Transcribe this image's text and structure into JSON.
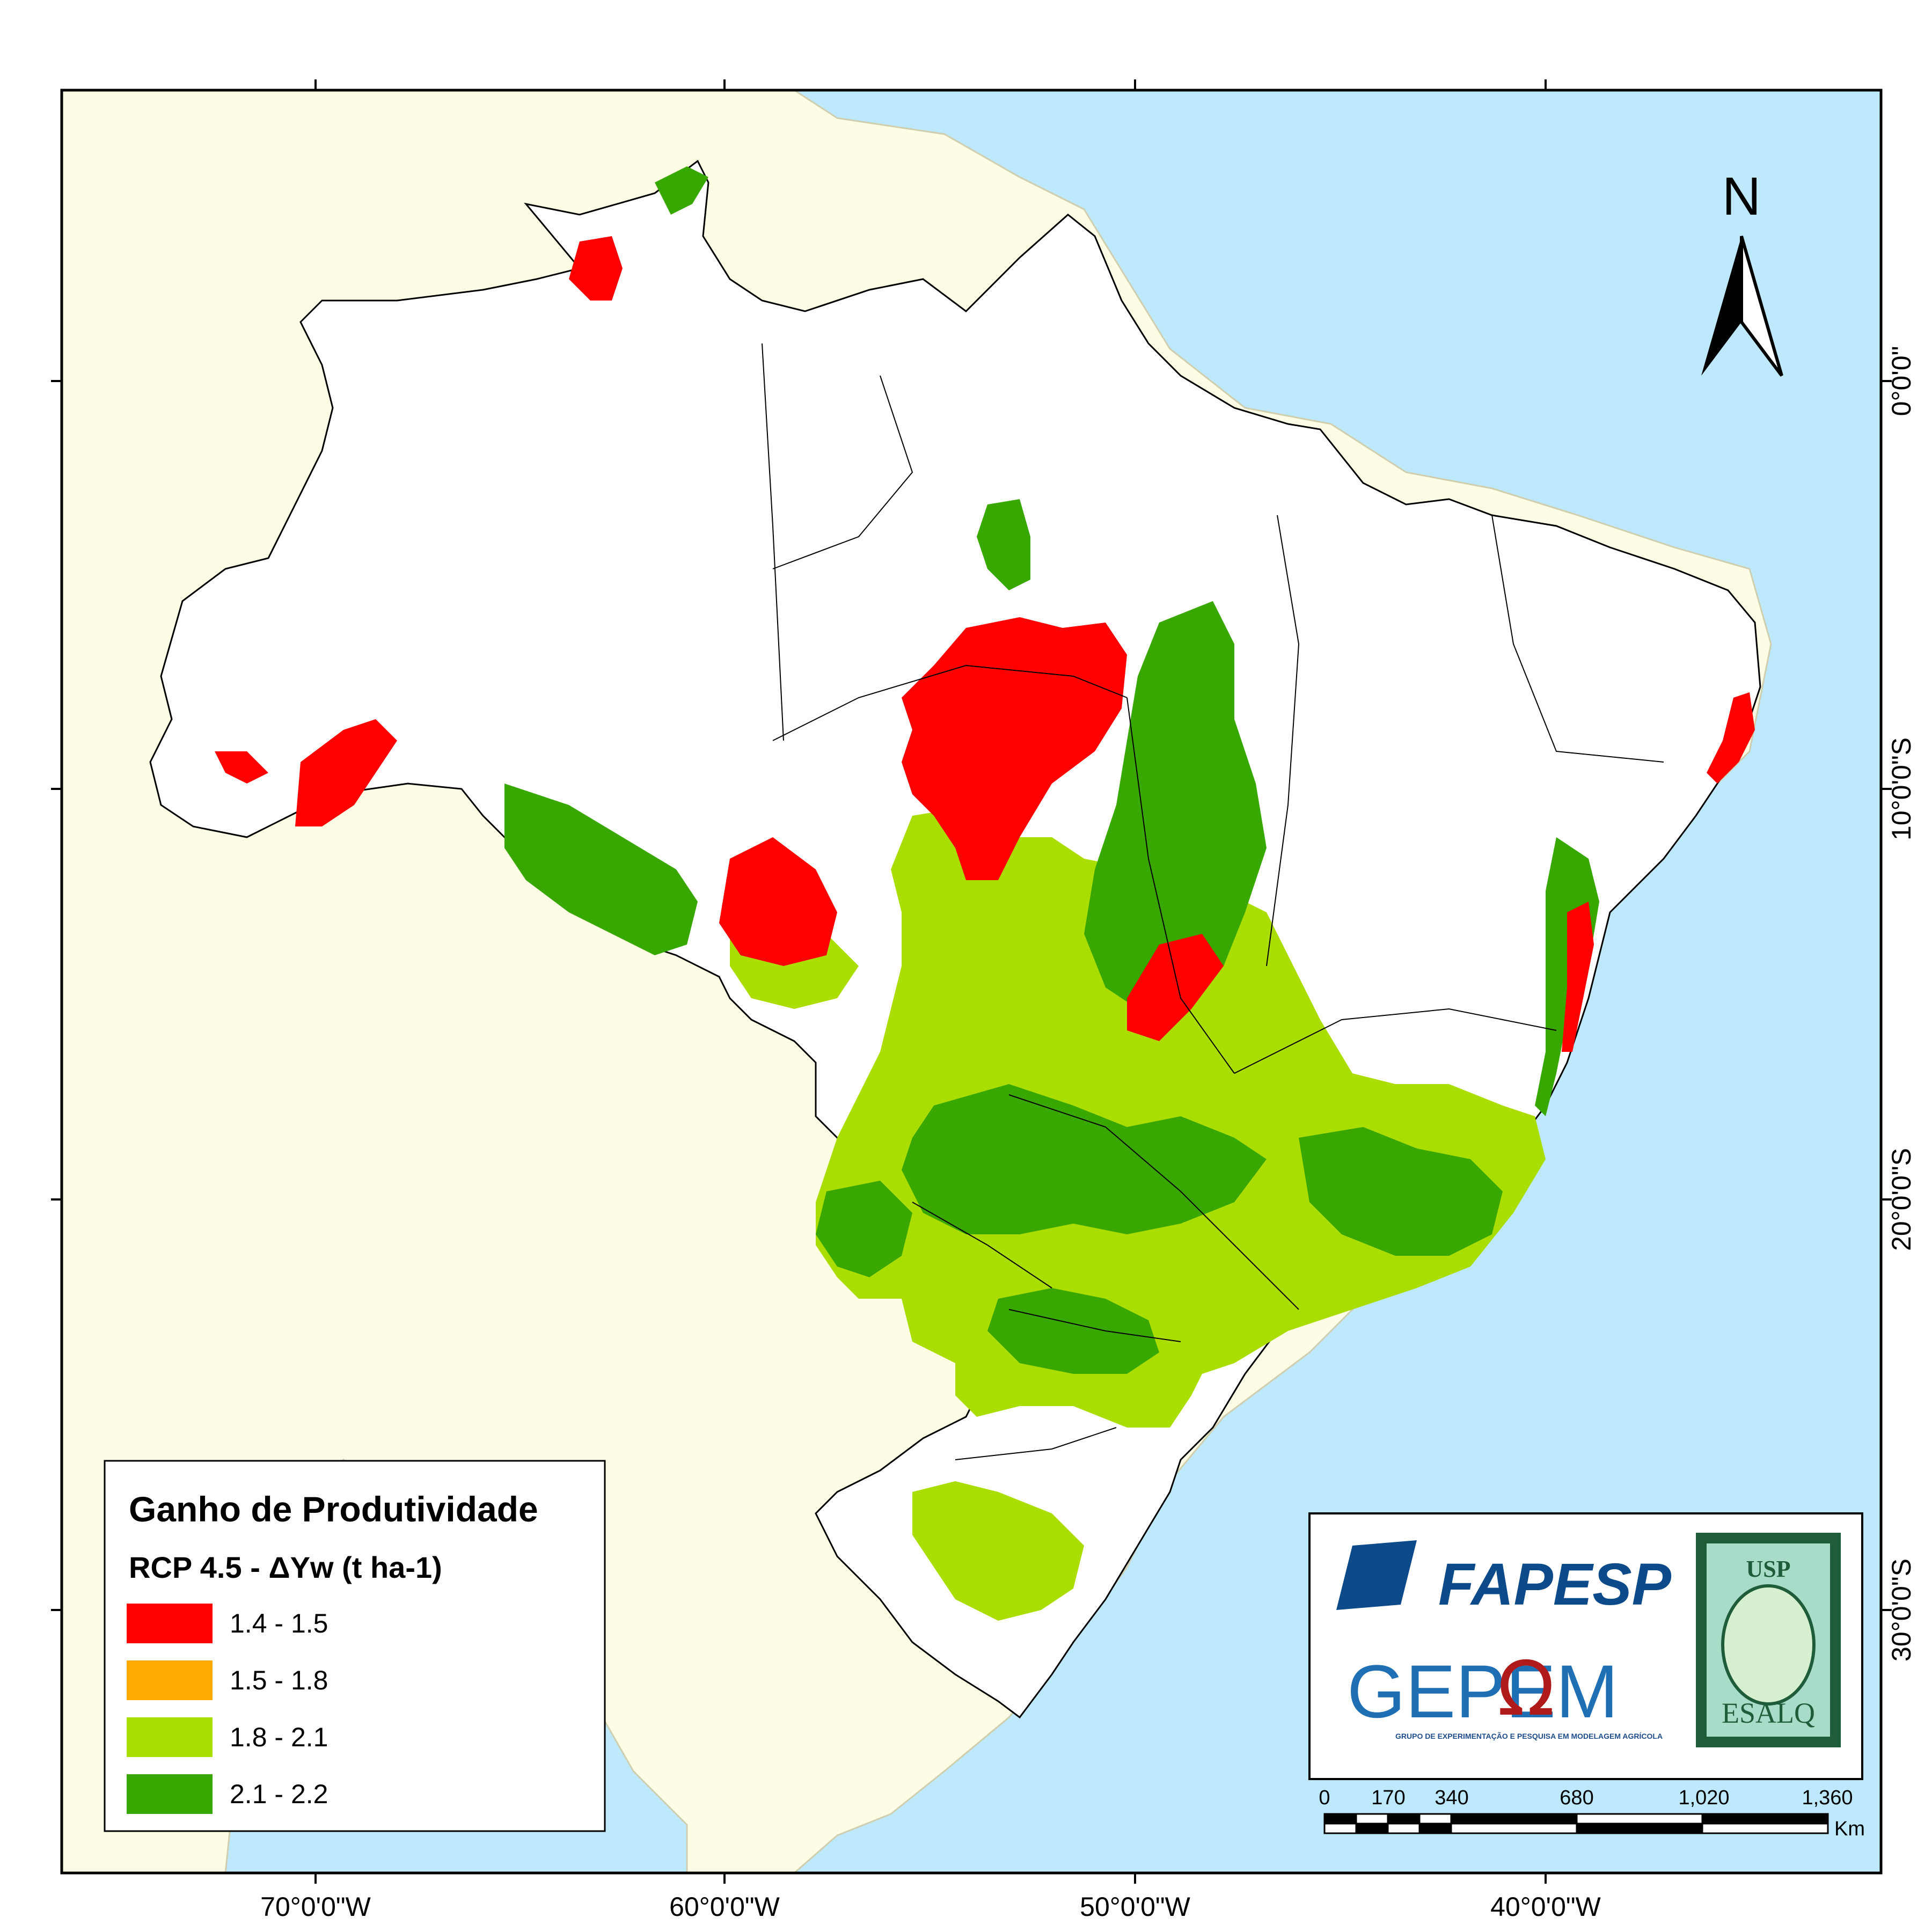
{
  "map": {
    "colors": {
      "ocean": "#bee8fb",
      "land_outside": "#fdfde5",
      "brazil_base": "#ffffff",
      "border": "#000000"
    },
    "longitude_labels": [
      "70°0'0\"W",
      "60°0'0\"W",
      "50°0'0\"W",
      "40°0'0\"W"
    ],
    "latitude_labels": [
      "0°0'0\"",
      "10°0'0\"S",
      "20°0'0\"S",
      "30°0'0\"S"
    ]
  },
  "legend": {
    "title": "Ganho de Produtividade",
    "subtitle": "RCP 4.5 - ΔYw (t ha-1)",
    "classes": [
      {
        "label": "1.4 - 1.5",
        "color": "#ff0000"
      },
      {
        "label": "1.5 - 1.8",
        "color": "#ffaa00"
      },
      {
        "label": "1.8 - 2.1",
        "color": "#aadd00"
      },
      {
        "label": "2.1 - 2.2",
        "color": "#38a800"
      }
    ]
  },
  "north_arrow": {
    "label": "N"
  },
  "scale_bar": {
    "labels": [
      "0",
      "170",
      "340",
      "680",
      "1,020",
      "1,360"
    ],
    "unit": "Km"
  },
  "logos": {
    "fapesp": "FAPESP",
    "gepema": "GEPEM",
    "gepema_sub": "GRUPO DE EXPERIMENTAÇÃO E PESQUISA EM MODELAGEM AGRÍCOLA",
    "usp": "USP",
    "esalq": "ESALQ"
  }
}
